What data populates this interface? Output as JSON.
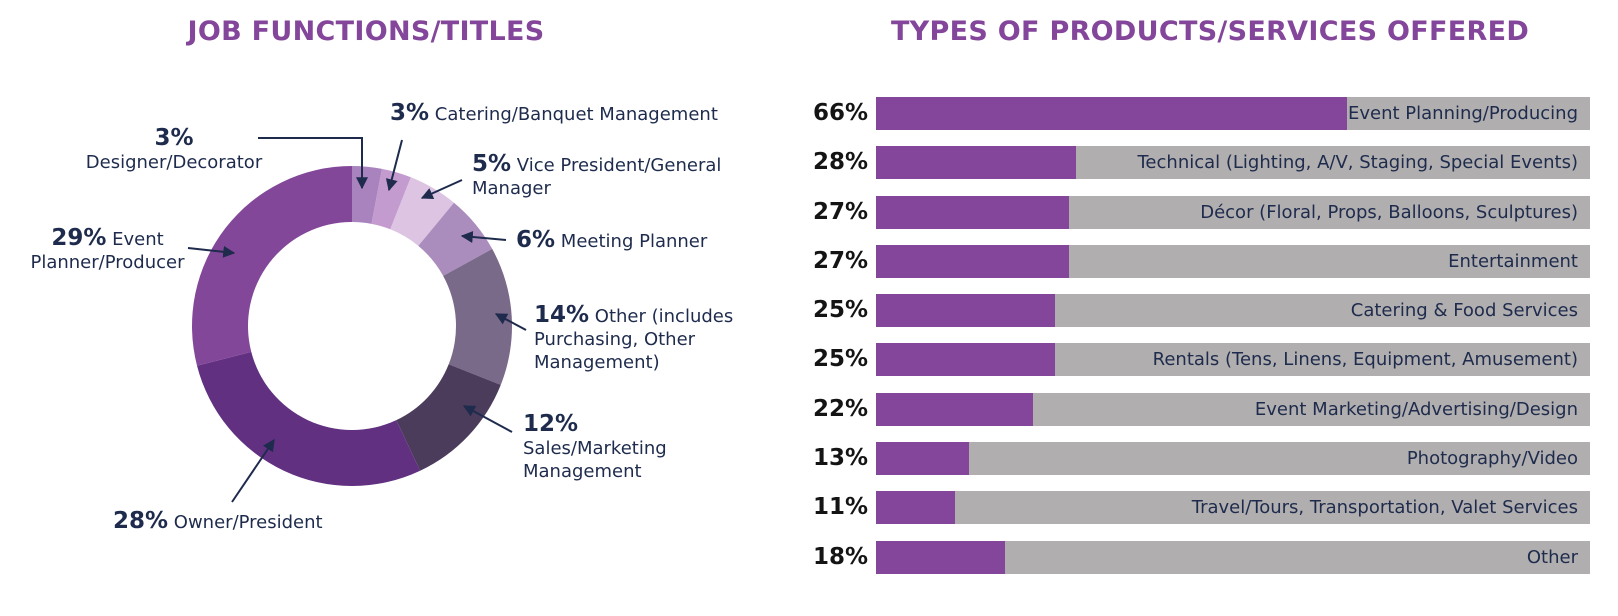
{
  "chart_data": [
    {
      "type": "pie",
      "title": "JOB FUNCTIONS/TITLES",
      "slices": [
        {
          "value": 3,
          "pct_label": "3%",
          "name": "Designer/Decorator",
          "color": "#a883be"
        },
        {
          "value": 3,
          "pct_label": "3%",
          "name": "Catering/Banquet Management",
          "color": "#c39bcf"
        },
        {
          "value": 5,
          "pct_label": "5%",
          "name": "Vice President/General Manager",
          "color": "#dcc4e2"
        },
        {
          "value": 6,
          "pct_label": "6%",
          "name": "Meeting Planner",
          "color": "#ab8dbd"
        },
        {
          "value": 14,
          "pct_label": "14%",
          "name": "Other (includes Purchasing, Other Management)",
          "color": "#7a6a8a"
        },
        {
          "value": 12,
          "pct_label": "12%",
          "name": "Sales/Marketing Management",
          "color": "#4b3c5c"
        },
        {
          "value": 28,
          "pct_label": "28%",
          "name": "Owner/President",
          "color": "#613080"
        },
        {
          "value": 29,
          "pct_label": "29%",
          "name": "Event Planner/Producer",
          "color": "#83479a"
        }
      ]
    },
    {
      "type": "bar",
      "orientation": "horizontal",
      "title": "TYPES OF PRODUCTS/SERVICES OFFERED",
      "categories": [
        "Event Planning/Producing",
        "Technical (Lighting, A/V, Staging, Special Events)",
        "Décor (Floral, Props, Balloons, Sculptures)",
        "Entertainment",
        "Catering & Food Services",
        "Rentals (Tens, Linens, Equipment, Amusement)",
        "Event Marketing/Advertising/Design",
        "Photography/Video",
        "Travel/Tours, Transportation, Valet Services",
        "Other"
      ],
      "values": [
        66,
        28,
        27,
        27,
        25,
        25,
        22,
        13,
        11,
        18
      ],
      "pct_labels": [
        "66%",
        "28%",
        "27%",
        "27%",
        "25%",
        "25%",
        "22%",
        "13%",
        "11%",
        "18%"
      ],
      "xlim": [
        0,
        100
      ],
      "fill_color": "#83469a",
      "track_color": "#b0aeae"
    }
  ]
}
